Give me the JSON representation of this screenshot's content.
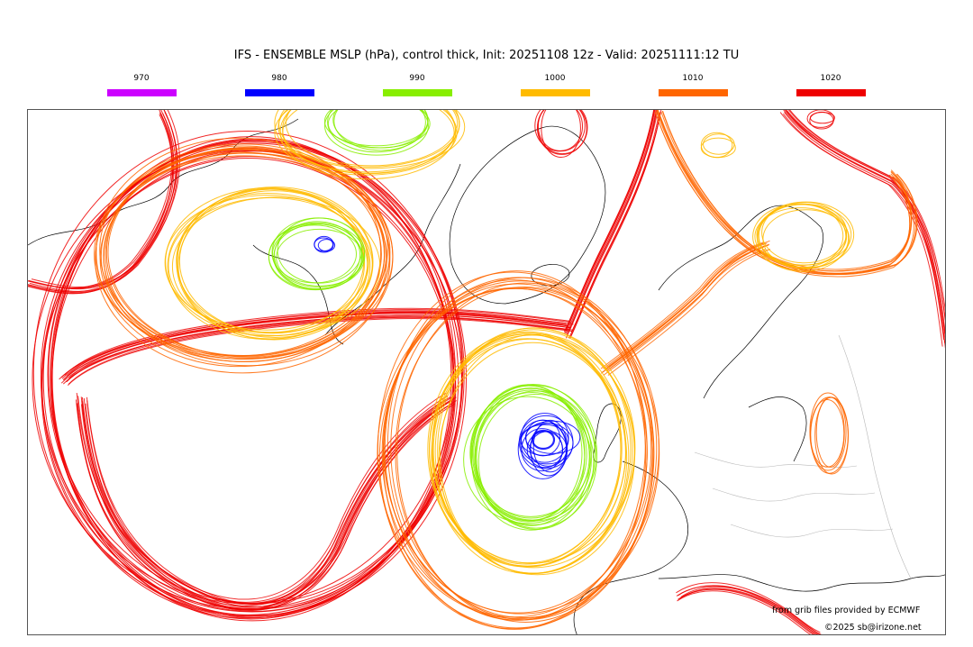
{
  "title": "IFS - ENSEMBLE MSLP (hPa), control thick, Init: 20251108 12z - Valid: 20251111:12 TU",
  "legend": [
    {
      "label": "970",
      "color": "#cc00ff"
    },
    {
      "label": "980",
      "color": "#0000ff"
    },
    {
      "label": "990",
      "color": "#88ee00"
    },
    {
      "label": "1000",
      "color": "#ffbb00"
    },
    {
      "label": "1010",
      "color": "#ff6600"
    },
    {
      "label": "1020",
      "color": "#ee0000"
    }
  ],
  "credits": {
    "source": "from grib files provided by ECMWF",
    "copyright": "©2025 sb@irizone.net"
  }
}
